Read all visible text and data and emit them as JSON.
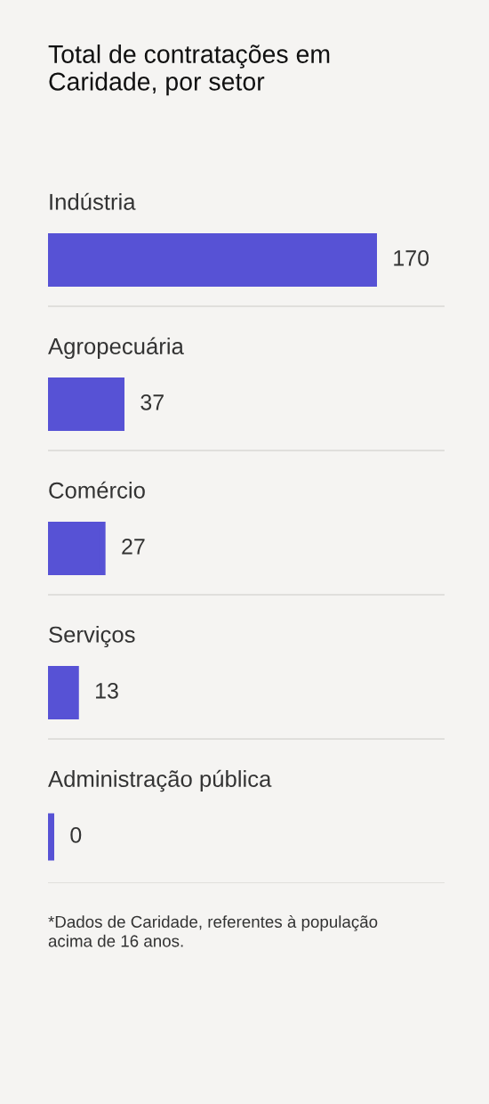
{
  "chart_data": {
    "type": "bar",
    "orientation": "horizontal",
    "title": "Total de contratações em Caridade, por setor",
    "categories": [
      "Indústria",
      "Agropecuária",
      "Comércio",
      "Serviços",
      "Administração pública"
    ],
    "values": [
      170,
      37,
      27,
      13,
      0
    ],
    "color": "#5752d5",
    "data_labels": true,
    "grid": "y",
    "annotations": [
      "*Dados de Caridade, referentes à população acima de 16 anos."
    ]
  }
}
